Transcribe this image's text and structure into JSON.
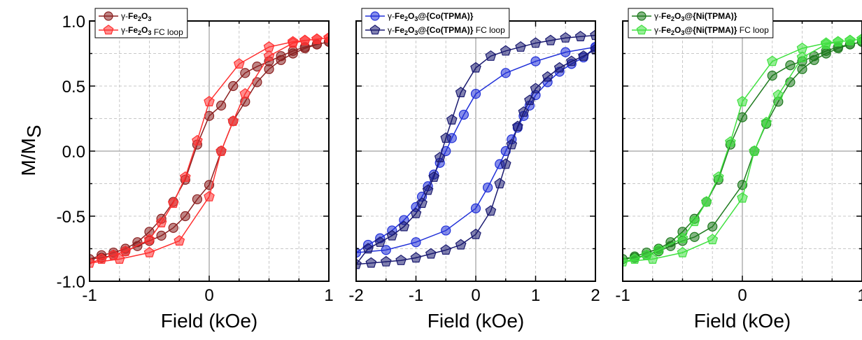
{
  "figure": {
    "ylabel_main": "M/M",
    "ylabel_sub": "S"
  },
  "colors": {
    "fe_zfc": "#8b2020",
    "fe_fc": "#ff3030",
    "co_zfc": "#2030d8",
    "co_fc": "#1a1a70",
    "ni_zfc": "#1e7a1e",
    "ni_fc": "#40e040"
  },
  "chart_data": [
    {
      "type": "line",
      "xlabel": "Field (kOe)",
      "ylabel": "M/MS",
      "xlim": [
        -1,
        1
      ],
      "ylim": [
        -1,
        1
      ],
      "xticks": [
        "-1",
        "0",
        "1"
      ],
      "xtick_values": [
        -1,
        0,
        1
      ],
      "yticks": [
        "-1.0",
        "-0.5",
        "0.0",
        "0.5",
        "1.0"
      ],
      "ytick_values": [
        -1,
        -0.5,
        0,
        0.5,
        1
      ],
      "grid": true,
      "legend_position": "top-left",
      "series": [
        {
          "name_prefix": "γ-",
          "name_bold": "Fe2O3",
          "name_plain": "",
          "color_key": "fe_zfc",
          "marker": "circle",
          "x": [
            1,
            0.9,
            0.8,
            0.7,
            0.6,
            0.5,
            0.4,
            0.3,
            0.2,
            0.1,
            0.0,
            -0.1,
            -0.2,
            -0.3,
            -0.4,
            -0.5,
            -0.6,
            -0.7,
            -0.8,
            -0.9,
            -1,
            -0.9,
            -0.8,
            -0.7,
            -0.6,
            -0.5,
            -0.4,
            -0.3,
            -0.2,
            -0.1,
            0.0,
            0.1,
            0.2,
            0.3,
            0.4,
            0.5,
            0.6,
            0.7,
            0.8,
            0.9,
            1
          ],
          "y": [
            0.84,
            0.82,
            0.8,
            0.77,
            0.73,
            0.69,
            0.65,
            0.6,
            0.5,
            0.35,
            0.27,
            0.05,
            -0.22,
            -0.39,
            -0.52,
            -0.62,
            -0.7,
            -0.75,
            -0.78,
            -0.8,
            -0.83,
            -0.82,
            -0.8,
            -0.77,
            -0.73,
            -0.69,
            -0.65,
            -0.59,
            -0.5,
            -0.37,
            -0.26,
            0.0,
            0.23,
            0.38,
            0.53,
            0.63,
            0.7,
            0.75,
            0.79,
            0.82,
            0.84
          ]
        },
        {
          "name_prefix": "γ-",
          "name_bold": "Fe2O3",
          "name_plain": " FC loop",
          "color_key": "fe_fc",
          "marker": "pentagon",
          "x": [
            1,
            0.9,
            0.8,
            0.7,
            0.5,
            0.25,
            0.0,
            -0.1,
            -0.2,
            -0.3,
            -0.4,
            -0.5,
            -0.7,
            -0.8,
            -0.9,
            -1,
            -0.75,
            -0.5,
            -0.25,
            0.0,
            0.1,
            0.2,
            0.3,
            0.5,
            0.7,
            0.8,
            0.9,
            1
          ],
          "y": [
            0.87,
            0.86,
            0.85,
            0.84,
            0.8,
            0.67,
            0.38,
            0.08,
            -0.2,
            -0.4,
            -0.55,
            -0.68,
            -0.77,
            -0.8,
            -0.83,
            -0.86,
            -0.83,
            -0.78,
            -0.69,
            -0.35,
            0.0,
            0.23,
            0.44,
            0.73,
            0.83,
            0.85,
            0.86,
            0.87
          ]
        }
      ]
    },
    {
      "type": "line",
      "xlabel": "Field (kOe)",
      "ylabel": "",
      "xlim": [
        -2,
        2
      ],
      "ylim": [
        -1,
        1
      ],
      "xticks": [
        "-2",
        "-1",
        "0",
        "1",
        "2"
      ],
      "xtick_values": [
        -2,
        -1,
        0,
        1,
        2
      ],
      "yticks": [],
      "ytick_values": [
        -1,
        -0.5,
        0,
        0.5,
        1
      ],
      "grid": true,
      "legend_position": "top-left",
      "series": [
        {
          "name_prefix": "γ-",
          "name_bold": "Fe2O3@{Co(TPMA)}",
          "name_plain": "",
          "color_key": "co_zfc",
          "marker": "circle",
          "x": [
            2,
            1.5,
            1.0,
            0.5,
            0.0,
            -0.2,
            -0.4,
            -0.5,
            -0.6,
            -0.7,
            -0.8,
            -0.9,
            -1.0,
            -1.2,
            -1.4,
            -1.6,
            -1.8,
            -2,
            -1.5,
            -1.0,
            -0.5,
            0.0,
            0.2,
            0.4,
            0.5,
            0.6,
            0.7,
            0.8,
            0.9,
            1.0,
            1.2,
            1.4,
            1.6,
            1.8,
            2
          ],
          "y": [
            0.8,
            0.76,
            0.69,
            0.6,
            0.44,
            0.28,
            0.1,
            0.0,
            -0.09,
            -0.18,
            -0.27,
            -0.35,
            -0.43,
            -0.53,
            -0.61,
            -0.67,
            -0.72,
            -0.78,
            -0.76,
            -0.7,
            -0.61,
            -0.44,
            -0.28,
            -0.1,
            0.0,
            0.09,
            0.18,
            0.27,
            0.35,
            0.43,
            0.53,
            0.61,
            0.67,
            0.72,
            0.8
          ]
        },
        {
          "name_prefix": "γ-",
          "name_bold": "Fe2O3@{Co(TPMA)}",
          "name_plain": " FC loop",
          "color_key": "co_fc",
          "marker": "pentagon",
          "x": [
            2,
            1.75,
            1.5,
            1.25,
            1.0,
            0.75,
            0.5,
            0.25,
            0.0,
            -0.25,
            -0.4,
            -0.5,
            -0.6,
            -0.7,
            -0.8,
            -0.9,
            -1.0,
            -1.2,
            -1.4,
            -1.6,
            -1.8,
            -2,
            -1.75,
            -1.5,
            -1.25,
            -1.0,
            -0.75,
            -0.5,
            -0.25,
            0.0,
            0.25,
            0.4,
            0.5,
            0.6,
            0.7,
            0.8,
            0.9,
            1.0,
            1.2,
            1.4,
            1.6,
            1.8,
            2
          ],
          "y": [
            0.89,
            0.88,
            0.87,
            0.85,
            0.83,
            0.8,
            0.77,
            0.73,
            0.64,
            0.45,
            0.24,
            0.1,
            -0.05,
            -0.2,
            -0.3,
            -0.4,
            -0.48,
            -0.58,
            -0.65,
            -0.7,
            -0.75,
            -0.87,
            -0.86,
            -0.85,
            -0.84,
            -0.82,
            -0.79,
            -0.76,
            -0.72,
            -0.64,
            -0.46,
            -0.25,
            -0.1,
            0.05,
            0.19,
            0.3,
            0.39,
            0.48,
            0.57,
            0.64,
            0.69,
            0.73,
            0.78
          ]
        }
      ]
    },
    {
      "type": "line",
      "xlabel": "Field (kOe)",
      "ylabel": "",
      "xlim": [
        -1,
        1
      ],
      "ylim": [
        -1,
        1
      ],
      "xticks": [
        "-1",
        "0",
        "1"
      ],
      "xtick_values": [
        -1,
        0,
        1
      ],
      "yticks": [],
      "ytick_values": [
        -1,
        -0.5,
        0,
        0.5,
        1
      ],
      "grid": true,
      "legend_position": "top-left",
      "series": [
        {
          "name_prefix": "γ-",
          "name_bold": "Fe2O3@{Ni(TPMA)}",
          "name_plain": "",
          "color_key": "ni_zfc",
          "marker": "circle",
          "x": [
            1,
            0.9,
            0.8,
            0.7,
            0.6,
            0.5,
            0.4,
            0.25,
            0.0,
            -0.1,
            -0.2,
            -0.3,
            -0.4,
            -0.5,
            -0.6,
            -0.7,
            -0.8,
            -0.9,
            -1,
            -0.9,
            -0.8,
            -0.7,
            -0.6,
            -0.5,
            -0.4,
            -0.25,
            0.0,
            0.1,
            0.2,
            0.3,
            0.4,
            0.5,
            0.6,
            0.7,
            0.8,
            0.9,
            1
          ],
          "y": [
            0.84,
            0.82,
            0.8,
            0.77,
            0.73,
            0.69,
            0.66,
            0.58,
            0.26,
            0.05,
            -0.22,
            -0.39,
            -0.52,
            -0.62,
            -0.7,
            -0.75,
            -0.78,
            -0.81,
            -0.83,
            -0.82,
            -0.8,
            -0.77,
            -0.73,
            -0.69,
            -0.66,
            -0.58,
            -0.26,
            0.0,
            0.21,
            0.38,
            0.53,
            0.63,
            0.7,
            0.75,
            0.79,
            0.82,
            0.84
          ]
        },
        {
          "name_prefix": "γ-",
          "name_bold": "Fe2O3@{Ni(TPMA)}",
          "name_plain": " FC loop",
          "color_key": "ni_fc",
          "marker": "pentagon",
          "x": [
            1,
            0.9,
            0.8,
            0.7,
            0.5,
            0.25,
            0.0,
            -0.1,
            -0.2,
            -0.3,
            -0.4,
            -0.5,
            -0.7,
            -0.8,
            -0.9,
            -1,
            -0.75,
            -0.5,
            -0.25,
            0.0,
            0.1,
            0.2,
            0.3,
            0.5,
            0.7,
            0.8,
            0.9,
            1
          ],
          "y": [
            0.86,
            0.85,
            0.84,
            0.83,
            0.79,
            0.69,
            0.38,
            0.07,
            -0.2,
            -0.39,
            -0.54,
            -0.67,
            -0.76,
            -0.8,
            -0.83,
            -0.85,
            -0.83,
            -0.78,
            -0.68,
            -0.36,
            0.0,
            0.22,
            0.43,
            0.72,
            0.82,
            0.84,
            0.85,
            0.86
          ]
        }
      ]
    }
  ]
}
